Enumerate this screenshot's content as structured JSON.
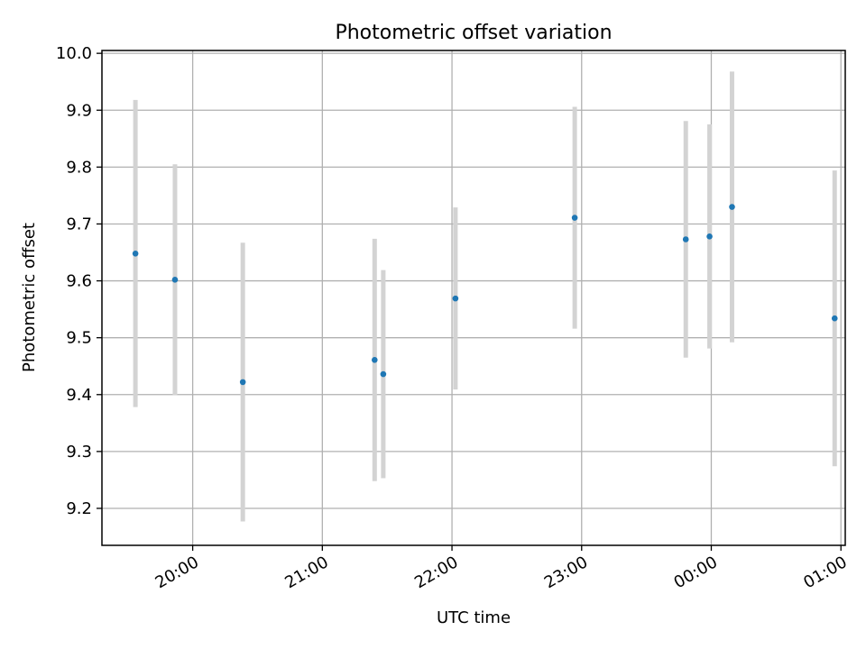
{
  "chart_data": {
    "type": "scatter",
    "title": "Photometric offset variation",
    "xlabel": "UTC time",
    "ylabel": "Photometric offset",
    "x_ticks": [
      "20:00",
      "21:00",
      "22:00",
      "23:00",
      "00:00",
      "01:00"
    ],
    "x_tick_minutes": [
      0,
      60,
      120,
      180,
      240,
      300
    ],
    "xlim_minutes": [
      -42,
      302
    ],
    "ylim": [
      9.135,
      10.005
    ],
    "y_ticks": [
      9.2,
      9.3,
      9.4,
      9.5,
      9.6,
      9.7,
      9.8,
      9.9,
      10.0
    ],
    "y_tick_labels": [
      "9.2",
      "9.3",
      "9.4",
      "9.5",
      "9.6",
      "9.7",
      "9.8",
      "9.9",
      "10.0"
    ],
    "x_minutes_after_2000_utc": [
      -26.5,
      -8.2,
      23.2,
      84.2,
      88.2,
      121.6,
      176.8,
      228.2,
      239.2,
      249.6,
      297.1
    ],
    "y": [
      9.648,
      9.602,
      9.422,
      9.461,
      9.436,
      9.569,
      9.711,
      9.673,
      9.678,
      9.73,
      9.534
    ],
    "yerr": [
      0.27,
      0.203,
      0.245,
      0.213,
      0.183,
      0.16,
      0.195,
      0.208,
      0.197,
      0.238,
      0.26
    ],
    "grid": true,
    "colors": {
      "points": "#1f77b4",
      "errorbars": "#d3d3d3",
      "grid": "#b0b0b0",
      "axes": "#000000"
    }
  }
}
